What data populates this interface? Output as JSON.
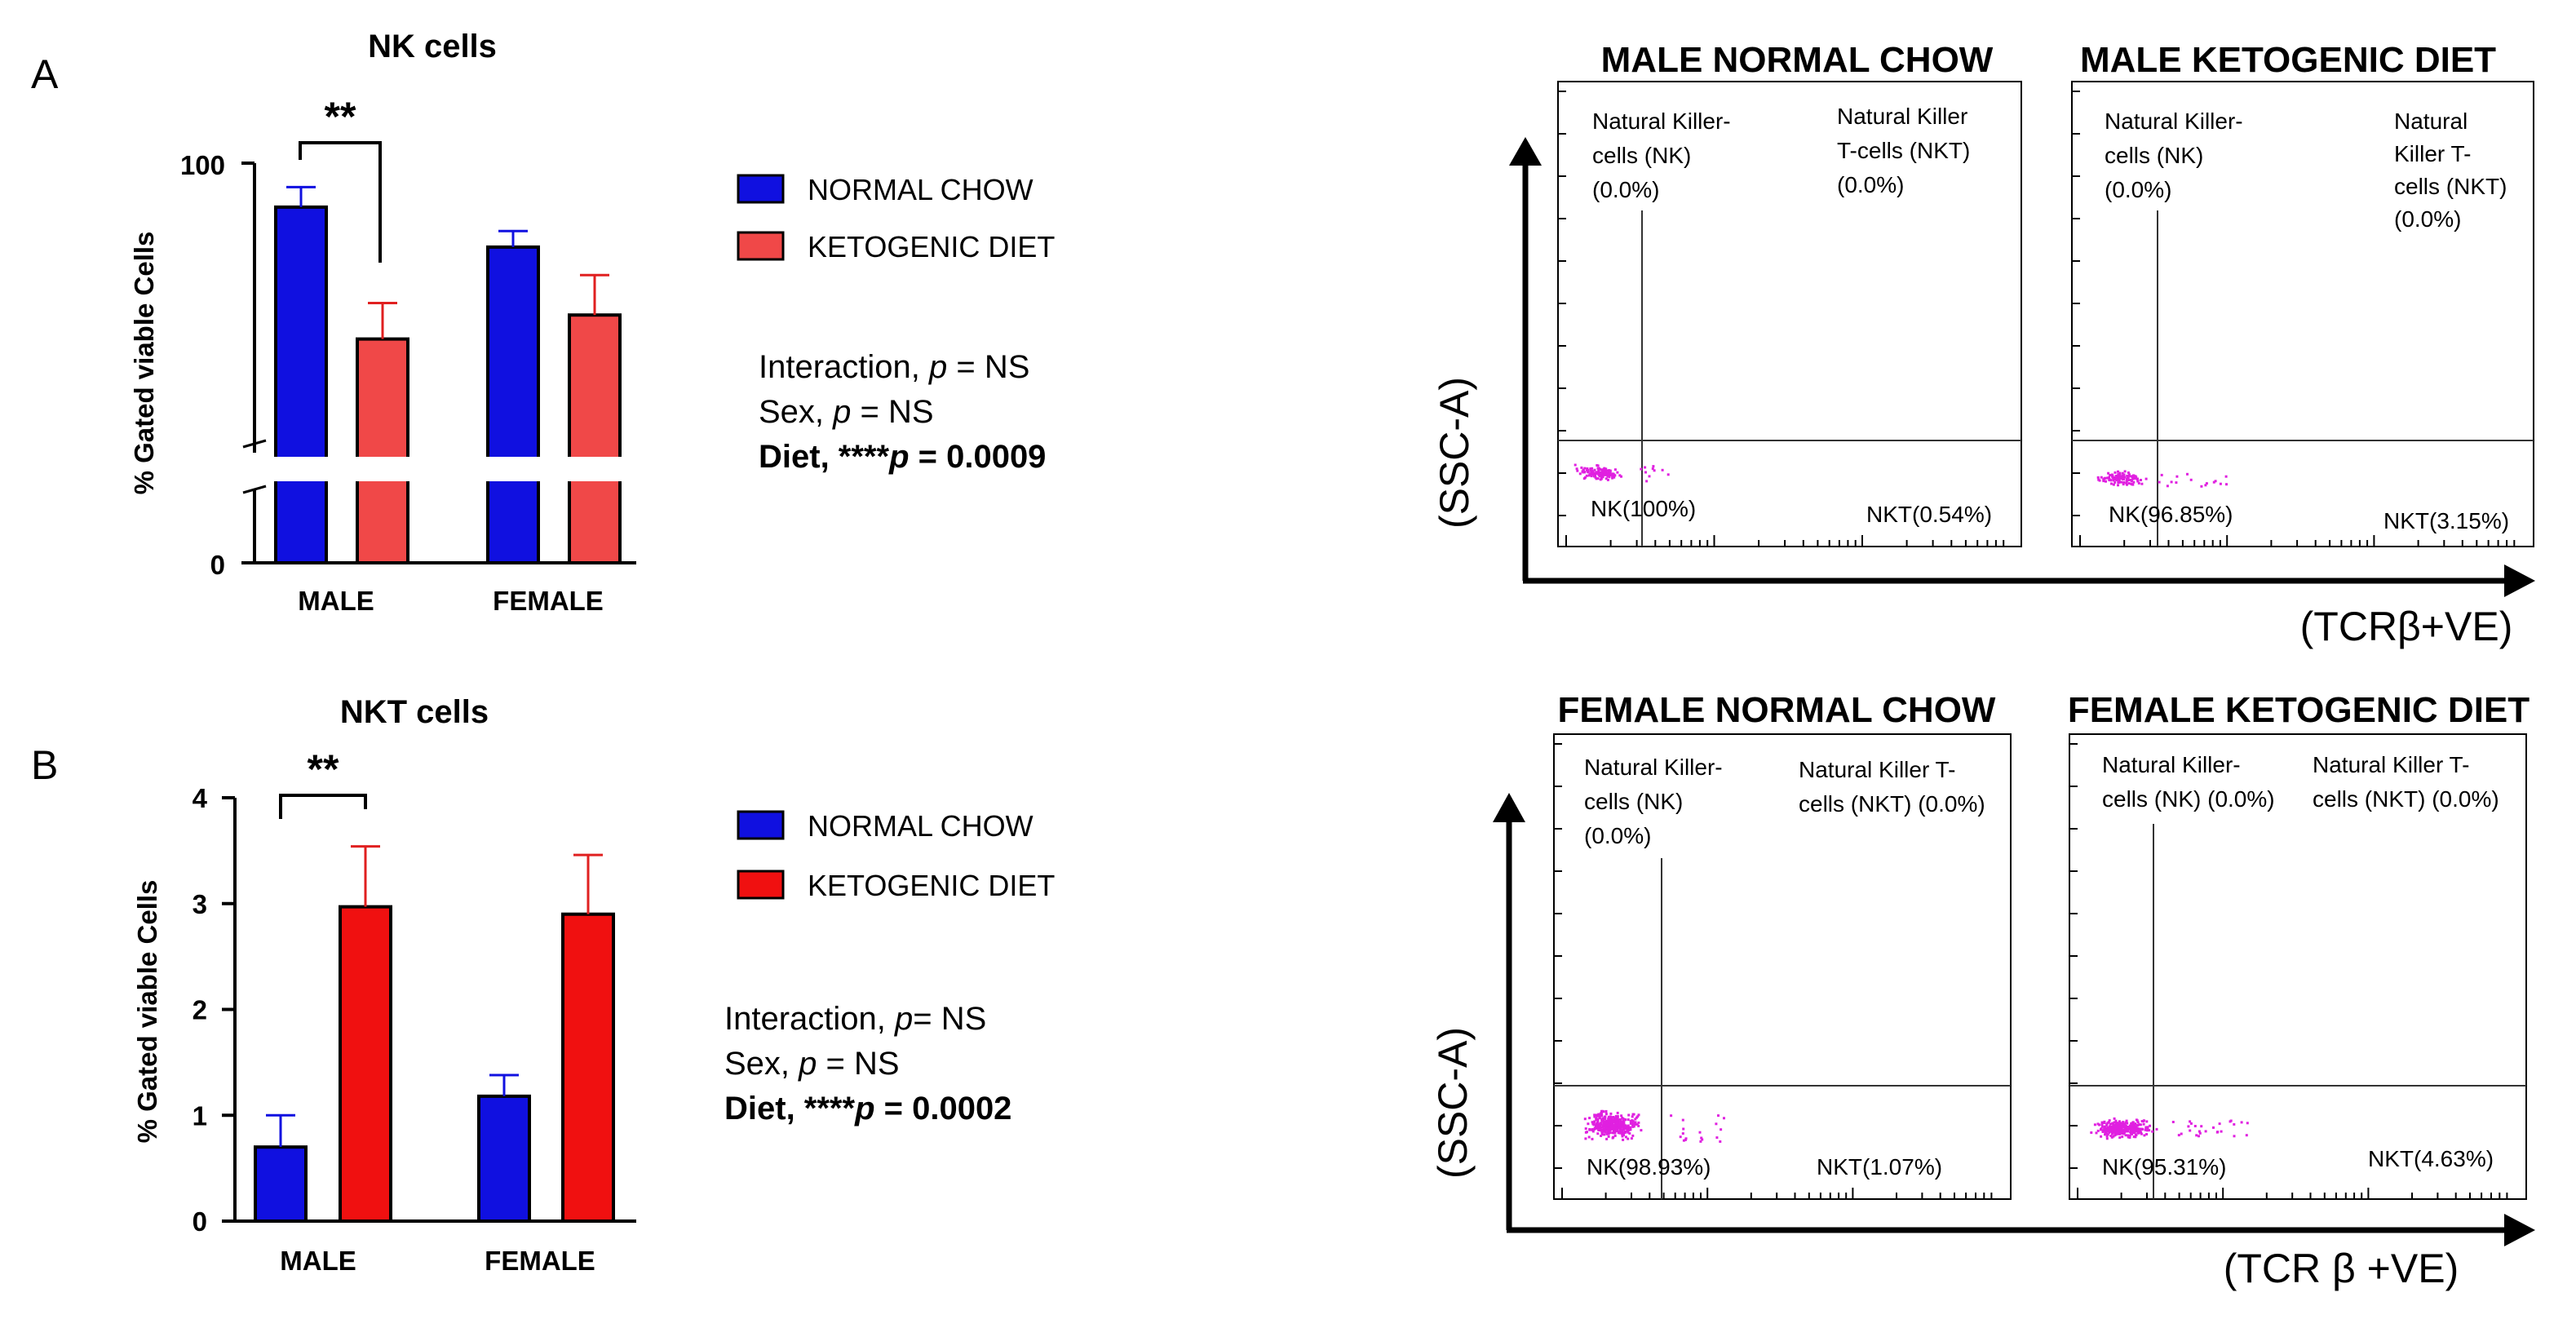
{
  "colors": {
    "normal_chow": "#1010e0",
    "ketogenic_nk": "#f04848",
    "ketogenic_nkt": "#f01010",
    "dots": "#e020e0",
    "axis": "#000000"
  },
  "panel_a": {
    "letter": "A",
    "legend": [
      "NORMAL CHOW",
      "KETOGENIC DIET"
    ],
    "stats": {
      "interaction_pre": "Interaction, ",
      "interaction_p": "p",
      "interaction_post": " = NS",
      "sex_pre": "Sex, ",
      "sex_p": "p",
      "sex_post": " = NS",
      "diet_pre": "Diet, ****",
      "diet_p": "p",
      "diet_post": " = 0.0009"
    }
  },
  "panel_b": {
    "letter": "B",
    "legend": [
      "NORMAL CHOW",
      "KETOGENIC DIET"
    ],
    "stats": {
      "interaction_pre": "Interaction, ",
      "interaction_p": "p",
      "interaction_post": "= NS",
      "sex_pre": "Sex, ",
      "sex_p": "p",
      "sex_post": " = NS",
      "diet_pre": "Diet, ****",
      "diet_p": "p",
      "diet_post": " = 0.0002"
    }
  },
  "chart_data": [
    {
      "type": "bar",
      "title": "NK cells",
      "xlabel": "",
      "ylabel": "% Gated viable Cells",
      "ylim": [
        0,
        100
      ],
      "axis_break": true,
      "yticks": [
        "0",
        "100"
      ],
      "categories": [
        "MALE",
        "FEMALE"
      ],
      "series": [
        {
          "name": "NORMAL CHOW",
          "values": [
            89,
            79
          ],
          "errors": [
            5,
            4
          ]
        },
        {
          "name": "KETOGENIC DIET",
          "values": [
            56,
            62
          ],
          "errors": [
            9,
            10
          ]
        }
      ],
      "significance": [
        {
          "category": "MALE",
          "label": "**"
        }
      ]
    },
    {
      "type": "bar",
      "title": "NKT cells",
      "xlabel": "",
      "ylabel": "% Gated viable Cells",
      "ylim": [
        0,
        4
      ],
      "yticks": [
        "0",
        "1",
        "2",
        "3",
        "4"
      ],
      "categories": [
        "MALE",
        "FEMALE"
      ],
      "series": [
        {
          "name": "NORMAL CHOW",
          "values": [
            0.7,
            1.18
          ],
          "errors": [
            0.3,
            0.2
          ]
        },
        {
          "name": "KETOGENIC DIET",
          "values": [
            2.97,
            2.9
          ],
          "errors": [
            0.57,
            0.56
          ]
        }
      ],
      "significance": [
        {
          "category": "MALE",
          "label": "**"
        }
      ]
    }
  ],
  "flow_a": {
    "y_axis": "(SSC-A)",
    "x_axis": "(TCRβ+VE)",
    "plots": [
      {
        "title": "MALE NORMAL CHOW",
        "nk_gate": [
          "Natural Killer-",
          "cells (NK)",
          "(0.0%)"
        ],
        "nkt_gate": [
          "Natural Killer",
          "T-cells (NKT)",
          "(0.0%)"
        ],
        "nk_pct": "NK(100%)",
        "nkt_pct": "NKT(0.54%)"
      },
      {
        "title": "MALE KETOGENIC DIET",
        "nk_gate": [
          "Natural Killer-",
          "cells (NK)",
          "(0.0%)"
        ],
        "nkt_gate": [
          "Natural",
          "Killer T-",
          "cells (NKT)",
          "(0.0%)"
        ],
        "nk_pct": "NK(96.85%)",
        "nkt_pct": "NKT(3.15%)"
      }
    ]
  },
  "flow_b": {
    "y_axis": "(SSC-A)",
    "x_axis": "(TCR β +VE)",
    "plots": [
      {
        "title": "FEMALE NORMAL CHOW",
        "nk_gate": [
          "Natural Killer-",
          "cells (NK)",
          "(0.0%)"
        ],
        "nkt_gate": [
          "Natural Killer T-",
          "cells (NKT) (0.0%)"
        ],
        "nk_pct": "NK(98.93%)",
        "nkt_pct": "NKT(1.07%)"
      },
      {
        "title": "FEMALE KETOGENIC DIET",
        "nk_gate": [
          "Natural Killer-",
          "cells (NK) (0.0%)"
        ],
        "nkt_gate": [
          "Natural Killer T-",
          "cells (NKT) (0.0%)"
        ],
        "nk_pct": "NK(95.31%)",
        "nkt_pct": "NKT(4.63%)"
      }
    ]
  }
}
